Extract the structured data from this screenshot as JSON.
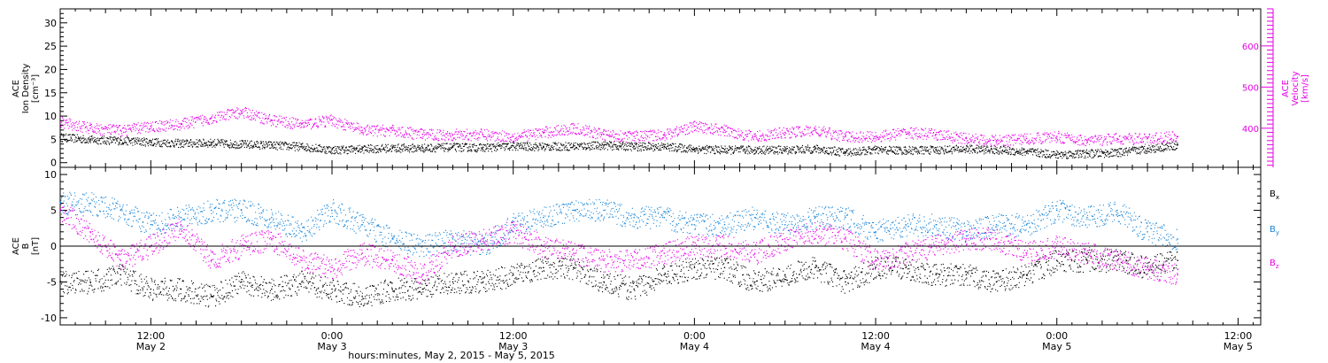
{
  "colors": {
    "black": "#000000",
    "magenta": "#e600e6",
    "blue": "#1a86d8"
  },
  "footer": {
    "label": "hours:minutes, May  2, 2015 - May  5, 2015"
  },
  "xaxis": {
    "range_hours": [
      6,
      85.5
    ],
    "ticks": [
      {
        "h": 12,
        "top": "12:00",
        "bottom": "May 2"
      },
      {
        "h": 24,
        "top": "0:00",
        "bottom": "May 3"
      },
      {
        "h": 36,
        "top": "12:00",
        "bottom": "May 3"
      },
      {
        "h": 48,
        "top": "0:00",
        "bottom": "May 4"
      },
      {
        "h": 60,
        "top": "12:00",
        "bottom": "May 4"
      },
      {
        "h": 72,
        "top": "0:00",
        "bottom": "May 5"
      },
      {
        "h": 84,
        "top": "12:00",
        "bottom": "May 5"
      }
    ]
  },
  "chart_data": [
    {
      "type": "scatter",
      "panel": "top",
      "ylabel_lines": [
        "ACE",
        "Ion Density",
        "[cm⁻³]"
      ],
      "ylim": [
        -1,
        33
      ],
      "yticks": [
        "0",
        "5",
        "10",
        "15",
        "20",
        "25",
        "30"
      ],
      "y2label_lines": [
        "ACE",
        "Velocity",
        "[km/s]"
      ],
      "y2lim": [
        305,
        690
      ],
      "y2ticks": [
        "400",
        "500",
        "600"
      ],
      "series": [
        {
          "color": "black",
          "axis": "left",
          "x": [
            6.0,
            8.0,
            10.0,
            12.0,
            14.0,
            16.0,
            18.0,
            20.0,
            22.0,
            24.0,
            26.0,
            28.0,
            30.0,
            32.0,
            34.0,
            36.0,
            38.0,
            40.0,
            42.0,
            44.0,
            46.0,
            48.0,
            50.0,
            52.0,
            54.0,
            56.0,
            58.0,
            60.0,
            62.0,
            64.0,
            66.0,
            68.0,
            70.0,
            72.0,
            74.0,
            76.0,
            78.0,
            80.0
          ],
          "values": [
            5.5,
            5.0,
            4.8,
            4.5,
            4.2,
            4.3,
            4.0,
            3.8,
            3.5,
            2.8,
            3.0,
            3.2,
            3.2,
            3.4,
            3.3,
            3.6,
            3.5,
            3.6,
            3.8,
            3.5,
            3.5,
            3.0,
            2.8,
            2.8,
            2.8,
            3.0,
            2.3,
            2.8,
            2.7,
            2.8,
            3.0,
            2.8,
            2.4,
            1.8,
            2.0,
            2.2,
            3.0,
            3.8
          ]
        },
        {
          "color": "magenta",
          "axis": "right",
          "x": [
            6.0,
            8.0,
            10.0,
            12.0,
            14.0,
            16.0,
            18.0,
            20.0,
            22.0,
            24.0,
            26.0,
            28.0,
            30.0,
            32.0,
            34.0,
            36.0,
            38.0,
            40.0,
            42.0,
            44.0,
            46.0,
            48.0,
            50.0,
            52.0,
            54.0,
            56.0,
            58.0,
            60.0,
            62.0,
            64.0,
            66.0,
            68.0,
            70.0,
            72.0,
            74.0,
            76.0,
            78.0,
            80.0
          ],
          "values": [
            415,
            400,
            395,
            405,
            410,
            425,
            440,
            420,
            410,
            420,
            395,
            395,
            385,
            385,
            385,
            380,
            390,
            400,
            385,
            380,
            385,
            405,
            395,
            380,
            390,
            395,
            380,
            380,
            390,
            385,
            375,
            370,
            375,
            380,
            370,
            375,
            375,
            380
          ]
        }
      ]
    },
    {
      "type": "scatter",
      "panel": "bottom",
      "ylabel_lines": [
        "ACE",
        "B",
        "[nT]"
      ],
      "ylim": [
        -11,
        11
      ],
      "yticks": [
        "-10",
        "-5",
        "0",
        "5",
        "10"
      ],
      "series": [
        {
          "name": "Bx",
          "color": "black",
          "x": [
            6.0,
            8.0,
            10.0,
            12.0,
            14.0,
            16.0,
            18.0,
            20.0,
            22.0,
            24.0,
            26.0,
            28.0,
            30.0,
            32.0,
            34.0,
            36.0,
            38.0,
            40.0,
            42.0,
            44.0,
            46.0,
            48.0,
            50.0,
            52.0,
            54.0,
            56.0,
            58.0,
            60.0,
            62.0,
            64.0,
            66.0,
            68.0,
            70.0,
            72.0,
            74.0,
            76.0,
            78.0,
            80.0
          ],
          "values": [
            -5,
            -5,
            -4,
            -6,
            -6,
            -7,
            -5,
            -6,
            -5,
            -6,
            -7,
            -6,
            -6,
            -5,
            -5,
            -4,
            -3,
            -3,
            -5,
            -6,
            -4,
            -3,
            -3,
            -5,
            -4,
            -3,
            -5,
            -3,
            -3,
            -4,
            -4,
            -5,
            -4,
            -2,
            -2,
            -2,
            -3,
            -2
          ]
        },
        {
          "name": "By",
          "color": "blue",
          "x": [
            6.0,
            8.0,
            10.0,
            12.0,
            14.0,
            16.0,
            18.0,
            20.0,
            22.0,
            24.0,
            26.0,
            28.0,
            30.0,
            32.0,
            34.0,
            36.0,
            38.0,
            40.0,
            42.0,
            44.0,
            46.0,
            48.0,
            50.0,
            52.0,
            54.0,
            56.0,
            58.0,
            60.0,
            62.0,
            64.0,
            66.0,
            68.0,
            70.0,
            72.0,
            74.0,
            76.0,
            78.0,
            80.0
          ],
          "values": [
            6,
            6,
            5,
            3,
            4,
            5,
            5,
            4,
            2,
            5,
            3,
            1,
            0,
            1,
            0,
            3,
            4,
            5,
            5,
            4,
            4,
            3,
            3,
            4,
            3,
            4,
            4,
            2,
            3,
            3,
            2,
            3,
            3,
            5,
            4,
            5,
            2,
            1
          ]
        },
        {
          "name": "Bz",
          "color": "magenta",
          "x": [
            6.0,
            8.0,
            10.0,
            12.0,
            14.0,
            16.0,
            18.0,
            20.0,
            22.0,
            24.0,
            26.0,
            28.0,
            30.0,
            32.0,
            34.0,
            36.0,
            38.0,
            40.0,
            42.0,
            44.0,
            46.0,
            48.0,
            50.0,
            52.0,
            54.0,
            56.0,
            58.0,
            60.0,
            62.0,
            64.0,
            66.0,
            68.0,
            70.0,
            72.0,
            74.0,
            76.0,
            78.0,
            80.0
          ],
          "values": [
            5,
            2,
            -2,
            0,
            3,
            -2,
            0,
            1,
            -2,
            -3,
            -1,
            -2,
            -4,
            0,
            1,
            2,
            0,
            -1,
            -2,
            -2,
            -1,
            0,
            0,
            -1,
            1,
            2,
            1,
            -2,
            -1,
            0,
            1,
            1,
            -1,
            0,
            -1,
            -2,
            -3,
            -4
          ]
        }
      ],
      "legend": [
        {
          "base": "B",
          "sub": "x",
          "color": "black"
        },
        {
          "base": "B",
          "sub": "y",
          "color": "blue"
        },
        {
          "base": "B",
          "sub": "z",
          "color": "magenta"
        }
      ]
    }
  ]
}
